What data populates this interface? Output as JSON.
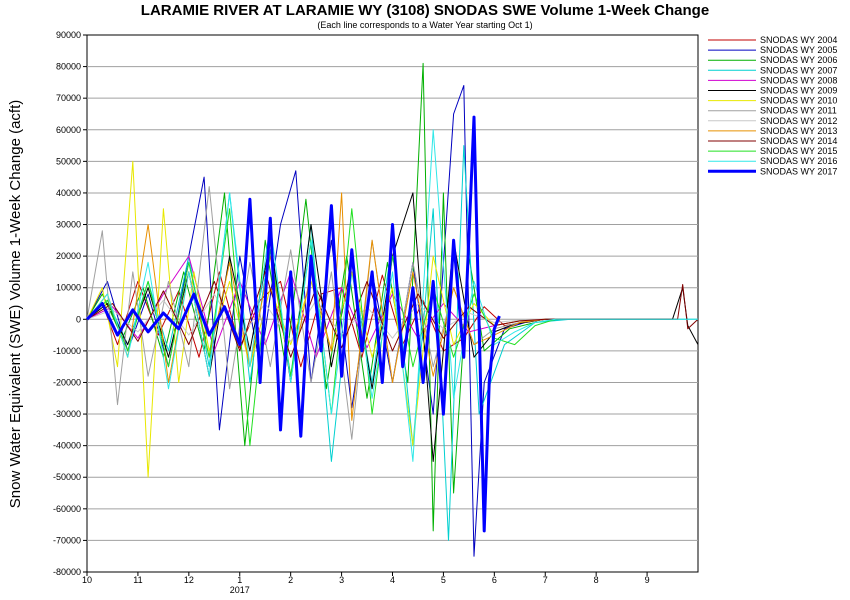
{
  "chart_data": {
    "type": "line",
    "title": "LARAMIE RIVER AT LARAMIE WY (3108) SNODAS SWE Volume 1-Week Change",
    "subtitle": "(Each line corresponds to a Water Year starting Oct 1)",
    "ylabel": "Snow Water Equivalent (SWE) Volume 1-Week Change (acft)",
    "xlabel": "",
    "ylim": [
      -80000,
      90000
    ],
    "yticks": [
      -80000,
      -70000,
      -60000,
      -50000,
      -40000,
      -30000,
      -20000,
      -10000,
      0,
      10000,
      20000,
      30000,
      40000,
      50000,
      60000,
      70000,
      80000,
      90000
    ],
    "xlim": [
      10,
      22
    ],
    "xticks": [
      {
        "value": 10,
        "label": "10"
      },
      {
        "value": 11,
        "label": "11"
      },
      {
        "value": 12,
        "label": "12"
      },
      {
        "value": 13,
        "label": "1"
      },
      {
        "value": 14,
        "label": "2"
      },
      {
        "value": 15,
        "label": "3"
      },
      {
        "value": 16,
        "label": "4"
      },
      {
        "value": 17,
        "label": "5"
      },
      {
        "value": 18,
        "label": "6"
      },
      {
        "value": 19,
        "label": "7"
      },
      {
        "value": 20,
        "label": "8"
      },
      {
        "value": 21,
        "label": "9"
      }
    ],
    "year_label": {
      "value": 13,
      "label": "2017"
    },
    "grid": "horizontal",
    "legend_position": "right",
    "series": [
      {
        "name": "SNODAS WY 2004",
        "color": "#c00000",
        "width": 1,
        "x": [
          10,
          10.3,
          10.6,
          11,
          11.4,
          11.8,
          12.2,
          12.6,
          13,
          13.4,
          13.8,
          14.2,
          14.6,
          15,
          15.4,
          15.8,
          16.2,
          16.6,
          17,
          17.4,
          17.8,
          18.2,
          18.6,
          19
        ],
        "y": [
          0,
          5000,
          -8000,
          12000,
          -5000,
          9000,
          -12000,
          15000,
          -9000,
          6000,
          12000,
          -15000,
          8000,
          10000,
          -12000,
          14000,
          -8000,
          6000,
          -10000,
          -6000,
          4000,
          -2000,
          -1000,
          0
        ]
      },
      {
        "name": "SNODAS WY 2005",
        "color": "#0000c0",
        "width": 1,
        "x": [
          10,
          10.4,
          10.8,
          11.2,
          11.6,
          12,
          12.3,
          12.6,
          13,
          13.4,
          13.8,
          14.1,
          14.4,
          14.8,
          15.2,
          15.6,
          16,
          16.4,
          16.8,
          17.2,
          17.4,
          17.6,
          17.8,
          18.2,
          18.6,
          19
        ],
        "y": [
          0,
          12000,
          -10000,
          8000,
          -15000,
          20000,
          45000,
          -35000,
          20000,
          -15000,
          30000,
          47000,
          -20000,
          25000,
          -28000,
          15000,
          -20000,
          18000,
          -30000,
          65000,
          74000,
          -75000,
          -20000,
          -3000,
          -1000,
          0
        ]
      },
      {
        "name": "SNODAS WY 2006",
        "color": "#00b000",
        "width": 1,
        "x": [
          10,
          10.3,
          10.7,
          11.1,
          11.5,
          11.9,
          12.3,
          12.7,
          13.1,
          13.5,
          13.9,
          14.3,
          14.7,
          15.1,
          15.5,
          15.9,
          16.3,
          16.6,
          16.8,
          17,
          17.2,
          17.5,
          17.8,
          18.3,
          18.8,
          19.3
        ],
        "y": [
          0,
          8000,
          -6000,
          10000,
          -12000,
          15000,
          -10000,
          40000,
          -40000,
          25000,
          -15000,
          38000,
          -22000,
          20000,
          -25000,
          18000,
          -20000,
          81000,
          -67000,
          40000,
          -55000,
          20000,
          -10000,
          -3000,
          -1000,
          0
        ]
      },
      {
        "name": "SNODAS WY 2007",
        "color": "#00d0d0",
        "width": 1,
        "x": [
          10,
          10.4,
          10.8,
          11.2,
          11.6,
          12,
          12.4,
          12.8,
          13.2,
          13.6,
          14,
          14.4,
          14.8,
          15.2,
          15.6,
          16,
          16.4,
          16.8,
          17.1,
          17.4,
          17.7,
          18.2,
          18.8,
          19.5,
          20,
          21,
          22
        ],
        "y": [
          0,
          6000,
          -8000,
          12000,
          -10000,
          20000,
          -15000,
          40000,
          -20000,
          25000,
          -18000,
          30000,
          -45000,
          15000,
          -20000,
          25000,
          -40000,
          35000,
          -70000,
          55000,
          -30000,
          -8000,
          -1000,
          0,
          0,
          0,
          0
        ]
      },
      {
        "name": "SNODAS WY 2008",
        "color": "#d000d0",
        "width": 1,
        "x": [
          10,
          10.5,
          11,
          11.5,
          12,
          12.5,
          13,
          13.5,
          14,
          14.5,
          15,
          15.5,
          16,
          16.5,
          17,
          17.5,
          18,
          18.5,
          19
        ],
        "y": [
          0,
          4000,
          -6000,
          8000,
          20000,
          -10000,
          12000,
          -8000,
          15000,
          -12000,
          10000,
          -9000,
          8000,
          -6000,
          5000,
          -4000,
          -2000,
          -500,
          0
        ]
      },
      {
        "name": "SNODAS WY 2009",
        "color": "#000000",
        "width": 1,
        "x": [
          10,
          10.4,
          10.8,
          11.2,
          11.6,
          12,
          12.4,
          12.8,
          13.2,
          13.6,
          14,
          14.4,
          14.8,
          15.2,
          15.6,
          16,
          16.4,
          16.8,
          17.2,
          17.6,
          18,
          18.4,
          18.8,
          19,
          21.5,
          21.7,
          21.8,
          22
        ],
        "y": [
          0,
          5000,
          -8000,
          10000,
          -12000,
          15000,
          -18000,
          20000,
          -10000,
          25000,
          -20000,
          30000,
          -15000,
          18000,
          -22000,
          20000,
          40000,
          -45000,
          25000,
          -12000,
          -4000,
          -1500,
          -500,
          0,
          0,
          10000,
          -2000,
          -8000
        ]
      },
      {
        "name": "SNODAS WY 2010",
        "color": "#e8e800",
        "width": 1,
        "x": [
          10,
          10.3,
          10.6,
          10.9,
          11.2,
          11.5,
          11.8,
          12.1,
          12.4,
          12.8,
          13.2,
          13.6,
          14,
          14.4,
          14.8,
          15.2,
          15.6,
          16,
          16.4,
          16.8,
          17.2,
          17.6,
          18,
          18.5,
          19
        ],
        "y": [
          0,
          10000,
          -15000,
          50000,
          -50000,
          35000,
          -20000,
          15000,
          -10000,
          12000,
          -15000,
          10000,
          -8000,
          12000,
          -10000,
          15000,
          -12000,
          10000,
          -40000,
          20000,
          -8000,
          5000,
          -2000,
          -500,
          0
        ]
      },
      {
        "name": "SNODAS WY 2011",
        "color": "#a0a0a0",
        "width": 1,
        "x": [
          10,
          10.3,
          10.6,
          10.9,
          11.2,
          11.6,
          12,
          12.4,
          12.8,
          13.2,
          13.6,
          14,
          14.4,
          14.8,
          15.2,
          15.6,
          16,
          16.4,
          16.8,
          17.2,
          17.6,
          18,
          18.5,
          19
        ],
        "y": [
          0,
          28000,
          -27000,
          15000,
          -18000,
          12000,
          -15000,
          42000,
          -22000,
          18000,
          -15000,
          22000,
          -20000,
          15000,
          -38000,
          25000,
          -20000,
          18000,
          -15000,
          10000,
          -8000,
          -3000,
          -1000,
          0
        ]
      },
      {
        "name": "SNODAS WY 2012",
        "color": "#c8c8c8",
        "width": 1,
        "x": [
          10,
          10.5,
          11,
          11.5,
          12,
          12.5,
          13,
          13.5,
          14,
          14.5,
          15,
          15.5,
          16,
          16.5,
          17,
          17.5,
          18,
          18.5,
          19
        ],
        "y": [
          0,
          3000,
          -4000,
          6000,
          -5000,
          8000,
          -6000,
          5000,
          -7000,
          6000,
          -5000,
          4000,
          -6000,
          5000,
          -3000,
          2000,
          -1000,
          -300,
          0
        ]
      },
      {
        "name": "SNODAS WY 2013",
        "color": "#e89000",
        "width": 1,
        "x": [
          10,
          10.4,
          10.8,
          11.2,
          11.6,
          12,
          12.4,
          12.8,
          13.2,
          13.6,
          14,
          14.4,
          14.8,
          15,
          15.2,
          15.6,
          16,
          16.4,
          16.8,
          17.2,
          17.6,
          18,
          18.5,
          19
        ],
        "y": [
          0,
          8000,
          -12000,
          30000,
          -20000,
          15000,
          -12000,
          18000,
          -15000,
          20000,
          -18000,
          15000,
          -10000,
          40000,
          -32000,
          25000,
          -20000,
          15000,
          -18000,
          10000,
          -8000,
          -5000,
          -1000,
          0
        ]
      },
      {
        "name": "SNODAS WY 2014",
        "color": "#800000",
        "width": 1,
        "x": [
          10,
          10.5,
          11,
          11.5,
          12,
          12.5,
          13,
          13.5,
          14,
          14.5,
          15,
          15.5,
          16,
          16.5,
          17,
          17.5,
          18,
          18.5,
          19,
          21.6,
          21.7,
          21.8,
          22
        ],
        "y": [
          0,
          5000,
          -7000,
          9000,
          -8000,
          12000,
          -10000,
          15000,
          -12000,
          10000,
          -9000,
          12000,
          -10000,
          8000,
          -6000,
          4000,
          -2000,
          -500,
          0,
          0,
          11000,
          -3000,
          0
        ]
      },
      {
        "name": "SNODAS WY 2015",
        "color": "#20e020",
        "width": 1,
        "x": [
          10,
          10.4,
          10.8,
          11.2,
          11.6,
          12,
          12.4,
          12.8,
          13.2,
          13.6,
          14,
          14.4,
          14.8,
          15.2,
          15.6,
          16,
          16.4,
          16.8,
          17.2,
          17.6,
          18,
          18.4,
          18.8,
          19.2
        ],
        "y": [
          0,
          6000,
          -10000,
          12000,
          -15000,
          18000,
          -12000,
          35000,
          -40000,
          22000,
          -18000,
          25000,
          -30000,
          35000,
          -30000,
          20000,
          -15000,
          10000,
          -12000,
          8000,
          -6000,
          -8000,
          -2000,
          0
        ]
      },
      {
        "name": "SNODAS WY 2016",
        "color": "#30e8e8",
        "width": 1,
        "x": [
          10,
          10.4,
          10.8,
          11.2,
          11.6,
          12,
          12.4,
          12.8,
          13.2,
          13.6,
          14,
          14.4,
          14.8,
          15.2,
          15.6,
          16,
          16.4,
          16.8,
          17.2,
          17.6,
          18,
          18.4,
          18.8,
          19.2,
          20,
          21,
          22
        ],
        "y": [
          0,
          8000,
          -12000,
          18000,
          -22000,
          15000,
          -18000,
          40000,
          -15000,
          30000,
          -20000,
          25000,
          -30000,
          20000,
          -25000,
          15000,
          -45000,
          60000,
          -25000,
          12000,
          -8000,
          -4000,
          -1000,
          0,
          0,
          0,
          0
        ]
      },
      {
        "name": "SNODAS WY 2017",
        "color": "#0000ff",
        "width": 3,
        "x": [
          10,
          10.3,
          10.6,
          10.9,
          11.2,
          11.5,
          11.8,
          12.1,
          12.4,
          12.7,
          13,
          13.2,
          13.4,
          13.6,
          13.8,
          14,
          14.2,
          14.4,
          14.6,
          14.8,
          15,
          15.2,
          15.4,
          15.6,
          15.8,
          16,
          16.2,
          16.4,
          16.6,
          16.8,
          17,
          17.2,
          17.4,
          17.6,
          17.8,
          17.9,
          18,
          18.1
        ],
        "y": [
          0,
          5000,
          -5000,
          3000,
          -4000,
          2000,
          -3000,
          8000,
          -5000,
          4000,
          -8000,
          38000,
          -20000,
          32000,
          -35000,
          15000,
          -37000,
          20000,
          -10000,
          36000,
          -18000,
          22000,
          -10000,
          15000,
          -20000,
          30000,
          -15000,
          10000,
          -20000,
          12000,
          -30000,
          25000,
          -12000,
          64000,
          -67000,
          -20000,
          -3000,
          1000
        ]
      }
    ]
  }
}
